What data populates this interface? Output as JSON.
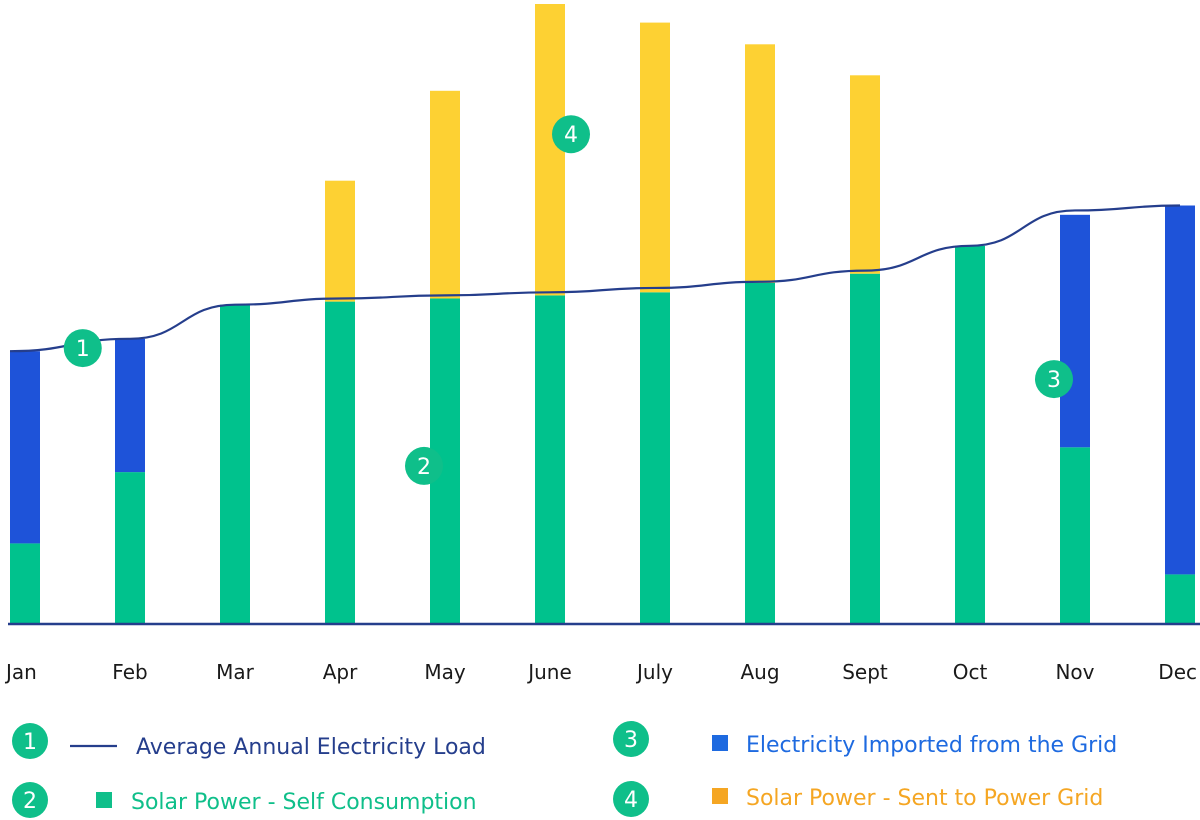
{
  "colors": {
    "self_consumption": "#00c28d",
    "imported": "#1e53d9",
    "sent_to_grid": "#fdd133",
    "load_line": "#253e8c",
    "badge": "#0fbf8a",
    "legend_sent": "#f5a623",
    "legend_imported": "#1e6ae0",
    "legend_self": "#0fbf8a",
    "legend_load": "#253e8c",
    "axis": "#253e8c"
  },
  "chart_data": {
    "type": "bar",
    "stacked": true,
    "categories": [
      "Jan",
      "Feb",
      "Mar",
      "Apr",
      "May",
      "June",
      "July",
      "Aug",
      "Sept",
      "Oct",
      "Nov",
      "Dec"
    ],
    "ylim": [
      0,
      100
    ],
    "grid": false,
    "series": [
      {
        "name": "Solar Power - Self Consumption",
        "color_key": "self_consumption",
        "values": [
          13,
          24.5,
          51.5,
          52,
          52.5,
          53,
          53.5,
          55,
          56.5,
          61,
          28.5,
          8
        ]
      },
      {
        "name": "Electricity Imported from the Grid",
        "color_key": "imported",
        "values": [
          31,
          21.5,
          0,
          0,
          0,
          0,
          0,
          0,
          0,
          0,
          37.5,
          59.5
        ]
      },
      {
        "name": "Solar Power - Sent to Power Grid",
        "color_key": "sent_to_grid",
        "values": [
          0,
          0,
          0,
          19.5,
          33.5,
          47,
          43.5,
          38.5,
          32,
          0,
          0,
          0
        ]
      }
    ],
    "line": {
      "name": "Average Annual Electricity Load",
      "color_key": "load_line",
      "values": [
        44,
        46,
        51.5,
        52.5,
        53,
        53.5,
        54.2,
        55.2,
        57,
        61,
        66.7,
        67.5
      ]
    },
    "callouts": [
      {
        "label": "1",
        "category_index": 0.55,
        "value": 44.5
      },
      {
        "label": "2",
        "category_index": 3.8,
        "value": 25.5
      },
      {
        "label": "3",
        "category_index": 9.8,
        "value": 39.5
      },
      {
        "label": "4",
        "category_index": 5.2,
        "value": 79
      }
    ]
  },
  "legend": [
    {
      "number": "1",
      "symbol": "line",
      "label": "Average Annual Electricity Load",
      "color_key": "legend_load"
    },
    {
      "number": "2",
      "symbol": "square",
      "label": "Solar Power - Self Consumption",
      "color_key": "legend_self"
    },
    {
      "number": "3",
      "symbol": "square",
      "label": "Electricity Imported from the Grid",
      "color_key": "legend_imported"
    },
    {
      "number": "4",
      "symbol": "square",
      "label": "Solar Power - Sent to Power Grid",
      "color_key": "legend_sent"
    }
  ]
}
